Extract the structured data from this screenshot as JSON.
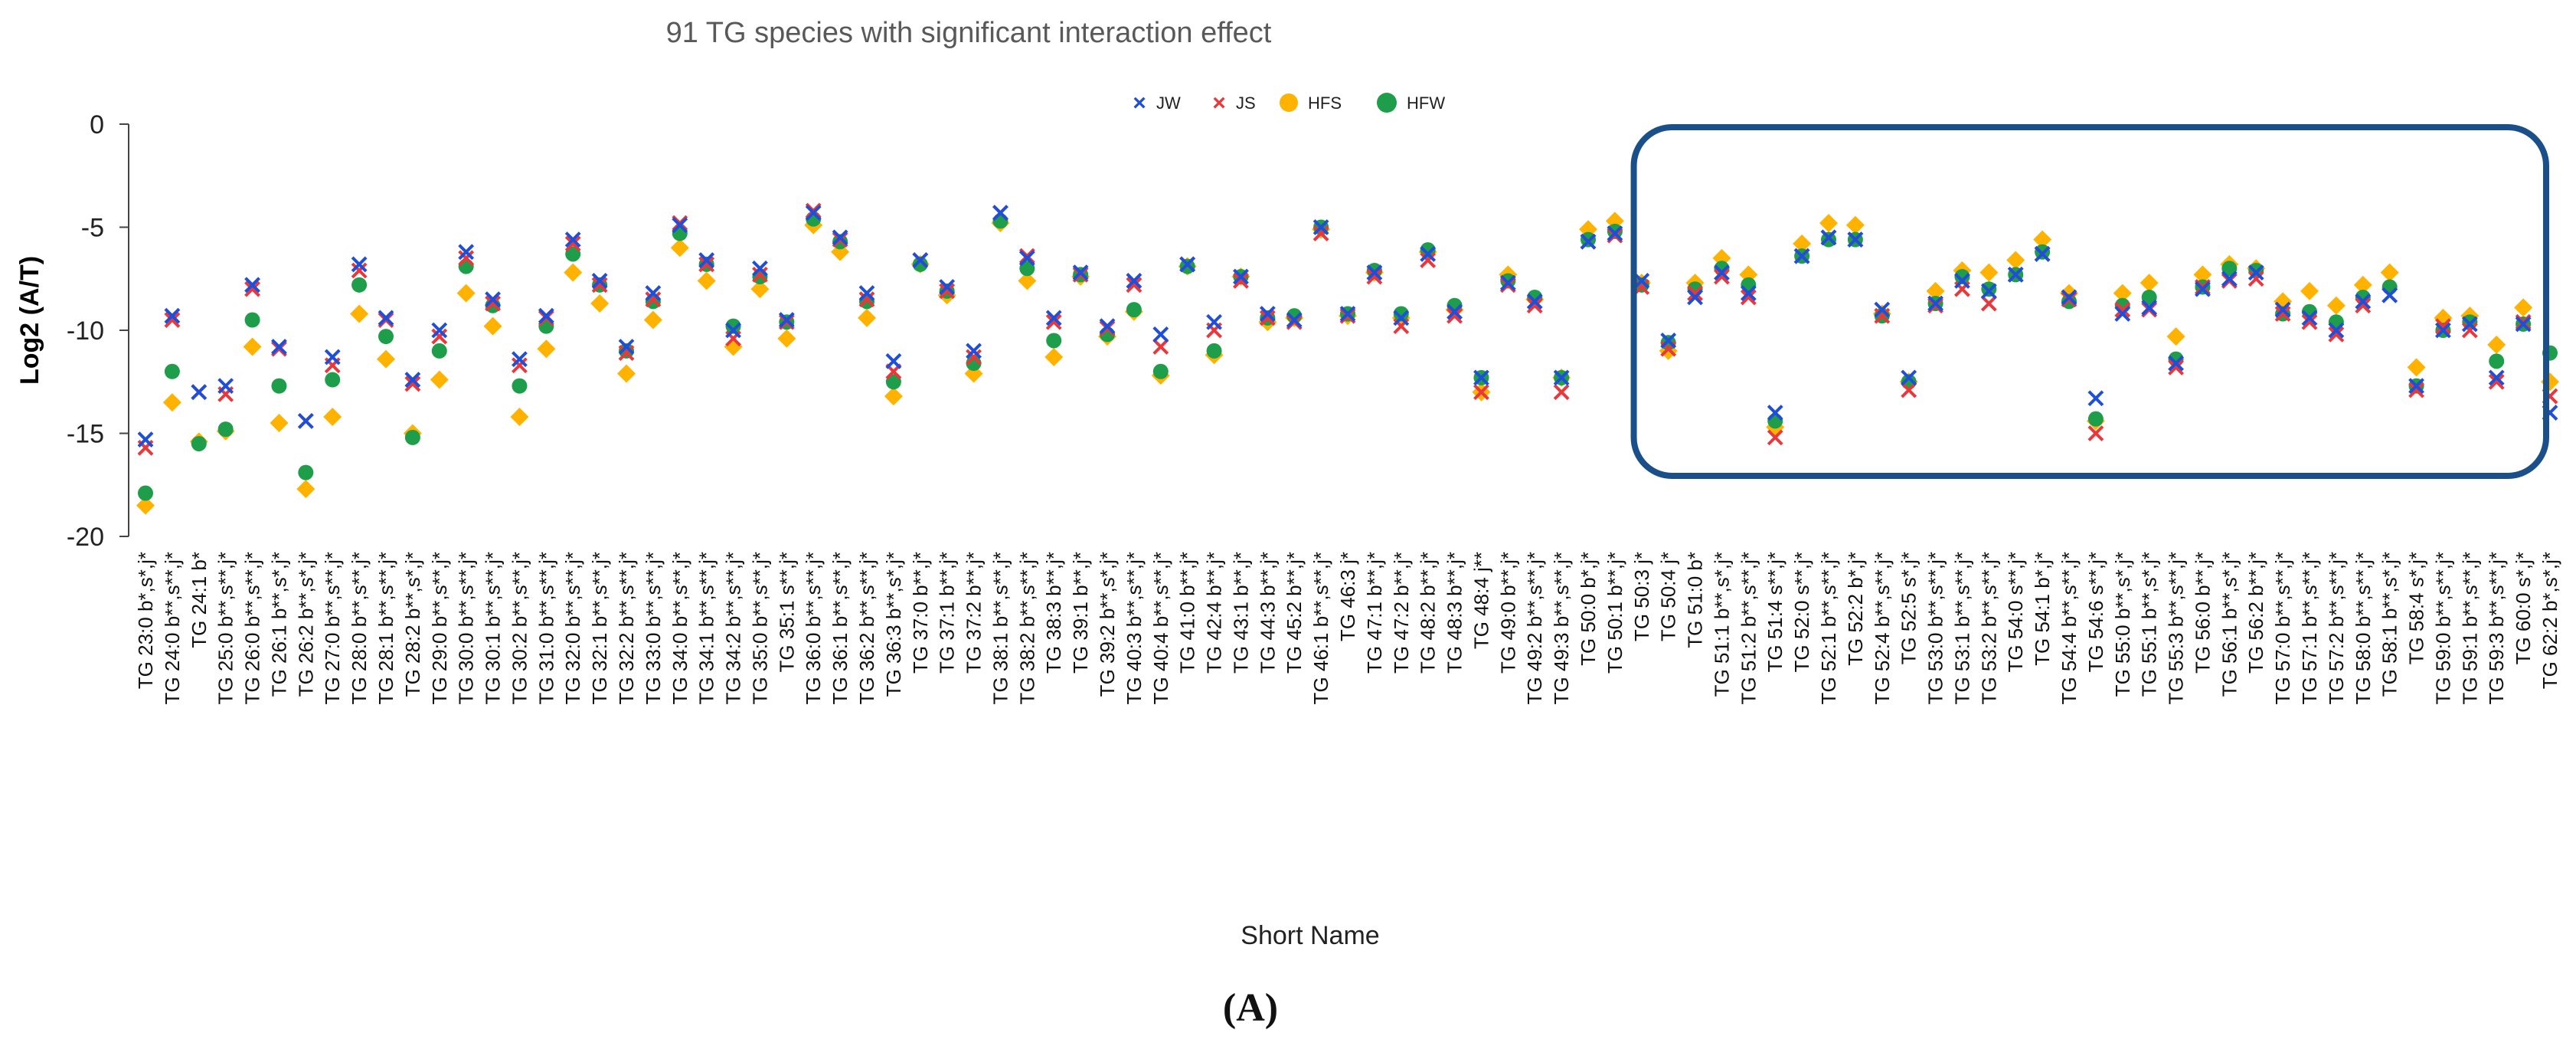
{
  "chart_data": {
    "type": "scatter",
    "title": "91 TG species with significant interaction effect",
    "xlabel": "Short Name",
    "ylabel": "Log2 (A/T)",
    "ylim": [
      -20,
      0
    ],
    "yticks": [
      0,
      -5,
      -10,
      -15,
      -20
    ],
    "panel_label": "(A)",
    "legend_position": "top-center",
    "highlight_box": {
      "from_category": "TG 51:0 b*",
      "to_category": "TG 62:2 b*,s*,j*"
    },
    "series": [
      {
        "name": "JW",
        "marker": "x",
        "color": "#1f4fd8"
      },
      {
        "name": "JS",
        "marker": "x",
        "color": "#e8383c"
      },
      {
        "name": "HFS",
        "marker": "diamond",
        "color": "#ffb300"
      },
      {
        "name": "HFW",
        "marker": "circle",
        "color": "#1e9e4a"
      }
    ],
    "categories": [
      "TG 23:0 b*,s*,j*",
      "TG 24:0 b**,s**,j*",
      "TG 24:1 b*",
      "TG 25:0 b**,s**,j*",
      "TG 26:0 b**,s**,j*",
      "TG 26:1 b**,s*,j*",
      "TG 26:2 b**,s*,j*",
      "TG 27:0 b**,s**,j*",
      "TG 28:0 b**,s**,j*",
      "TG 28:1 b**,s**,j*",
      "TG 28:2 b**,s*,j*",
      "TG 29:0 b**,s**,j*",
      "TG 30:0 b**,s**,j*",
      "TG 30:1 b**,s**,j*",
      "TG 30:2 b**,s**,j*",
      "TG 31:0 b**,s**,j*",
      "TG 32:0 b**,s**,j*",
      "TG 32:1 b**,s**,j*",
      "TG 32:2 b**,s**,j*",
      "TG 33:0 b**,s**,j*",
      "TG 34:0 b**,s**,j*",
      "TG 34:1 b**,s**,j*",
      "TG 34:2 b**,s**,j*",
      "TG 35:0 b**,s**,j*",
      "TG 35:1 s**,j*",
      "TG 36:0 b**,s**,j*",
      "TG 36:1 b**,s**,j*",
      "TG 36:2 b**,s**,j*",
      "TG 36:3 b**,s*,j*",
      "TG 37:0 b**,j*",
      "TG 37:1 b**,j*",
      "TG 37:2 b**,j*",
      "TG 38:1 b**,s**,j*",
      "TG 38:2 b**,s**,j*",
      "TG 38:3 b**,j*",
      "TG 39:1 b**,j*",
      "TG 39:2 b**,s*,j*",
      "TG 40:3 b**,s**,j*",
      "TG 40:4 b**,s**,j*",
      "TG 41:0 b**,j*",
      "TG 42:4 b**,j*",
      "TG 43:1 b**,j*",
      "TG 44:3 b**,j*",
      "TG 45:2 b**,j*",
      "TG 46:1 b**,s**,j*",
      "TG 46:3 j*",
      "TG 47:1 b**,j*",
      "TG 47:2 b**,j*",
      "TG 48:2 b**,j*",
      "TG 48:3 b**,j*",
      "TG 48:4 j**",
      "TG 49:0 b**,j*",
      "TG 49:2 b**,s**,j*",
      "TG 49:3 b**,s**,j*",
      "TG 50:0 b*,j*",
      "TG 50:1 b**,j*",
      "TG 50:3 j*",
      "TG 50:4 j*",
      "TG 51:0 b*",
      "TG 51:1 b**,s*,j*",
      "TG 51:2 b**,s**,j*",
      "TG 51:4 s**,j*",
      "TG 52:0 s**,j*",
      "TG 52:1 b**,s**,j*",
      "TG 52:2 b*,j*",
      "TG 52:4 b**,s**,j*",
      "TG 52:5 s*,j*",
      "TG 53:0 b**,s**,j*",
      "TG 53:1 b**,s**,j*",
      "TG 53:2 b**,s**,j*",
      "TG 54:0 s**,j*",
      "TG 54:1 b*,j*",
      "TG 54:4 b**,s**,j*",
      "TG 54:6 s**,j*",
      "TG 55:0 b**,s*,j*",
      "TG 55:1 b**,s*,j*",
      "TG 55:3 b**,s**,j*",
      "TG 56:0 b**,j*",
      "TG 56:1 b**,s*,j*",
      "TG 56:2 b**,j*",
      "TG 57:0 b**,s**,j*",
      "TG 57:1 b**,s**,j*",
      "TG 57:2 b**,s**,j*",
      "TG 58:0 b**,s**,j*",
      "TG 58:1 b**,s*,j*",
      "TG 58:4 s*,j*",
      "TG 59:0 b**,s**,j*",
      "TG 59:1 b**,s**,j*",
      "TG 59:3 b**,s**,j*",
      "TG 60:0 s*,j*",
      "TG 62:2 b*,s*,j*"
    ],
    "values": {
      "JW": [
        -15.3,
        -9.3,
        -13.0,
        -12.7,
        -7.8,
        -10.8,
        -14.4,
        -11.3,
        -6.8,
        -9.4,
        -12.4,
        -10.0,
        -6.2,
        -8.5,
        -11.4,
        -9.3,
        -5.6,
        -7.6,
        -10.8,
        -8.2,
        -4.9,
        -6.6,
        -10.0,
        -7.0,
        -9.5,
        -4.3,
        -5.5,
        -8.2,
        -11.5,
        -6.6,
        -7.9,
        -11.0,
        -4.3,
        -6.5,
        -9.4,
        -7.2,
        -9.8,
        -7.6,
        -10.2,
        -6.8,
        -9.6,
        -7.4,
        -9.2,
        -9.5,
        -5.0,
        -9.2,
        -7.2,
        -9.4,
        -6.3,
        -9.1,
        -12.3,
        -7.7,
        -8.6,
        -12.3,
        -5.7,
        -5.3,
        -7.6,
        -10.5,
        -8.4,
        -7.2,
        -8.2,
        -14.0,
        -6.4,
        -5.5,
        -5.6,
        -9.0,
        -12.3,
        -8.7,
        -7.6,
        -8.1,
        -7.3,
        -6.3,
        -8.4,
        -13.3,
        -9.2,
        -8.9,
        -11.6,
        -8.0,
        -7.5,
        -7.2,
        -9.0,
        -9.4,
        -10.0,
        -8.6,
        -8.3,
        -12.7,
        -10.0,
        -9.7,
        -12.3,
        -9.7,
        -14.0
      ],
      "JS": [
        -15.7,
        -9.5,
        -13.0,
        -13.1,
        -8.0,
        -10.9,
        -14.4,
        -11.7,
        -7.1,
        -9.5,
        -12.6,
        -10.3,
        -6.5,
        -8.7,
        -11.7,
        -9.4,
        -5.8,
        -7.8,
        -11.1,
        -8.5,
        -4.8,
        -6.8,
        -10.4,
        -7.3,
        -9.6,
        -4.2,
        -5.6,
        -8.5,
        -12.0,
        -6.6,
        -8.1,
        -11.3,
        -4.3,
        -6.4,
        -9.6,
        -7.3,
        -9.9,
        -7.8,
        -10.8,
        -6.8,
        -10.0,
        -7.6,
        -9.4,
        -9.6,
        -5.3,
        -9.3,
        -7.4,
        -9.8,
        -6.6,
        -9.3,
        -13.0,
        -7.8,
        -8.8,
        -13.0,
        -5.7,
        -5.4,
        -7.9,
        -10.9,
        -8.2,
        -7.4,
        -8.4,
        -15.2,
        -6.4,
        -5.5,
        -5.6,
        -9.3,
        -12.9,
        -8.8,
        -8.0,
        -8.7,
        -7.3,
        -6.3,
        -8.5,
        -15.0,
        -9.0,
        -9.0,
        -11.8,
        -7.9,
        -7.6,
        -7.5,
        -9.2,
        -9.6,
        -10.2,
        -8.8,
        -8.3,
        -12.9,
        -9.8,
        -10.0,
        -12.5,
        -9.6,
        -13.2
      ],
      "HFS": [
        -18.5,
        -13.5,
        -15.4,
        -14.9,
        -10.8,
        -14.5,
        -17.7,
        -14.2,
        -9.2,
        -11.4,
        -15.0,
        -12.4,
        -8.2,
        -9.8,
        -14.2,
        -10.9,
        -7.2,
        -8.7,
        -12.1,
        -9.5,
        -6.0,
        -7.6,
        -10.8,
        -8.0,
        -10.4,
        -4.9,
        -6.2,
        -9.4,
        -13.2,
        -6.8,
        -8.3,
        -12.1,
        -4.8,
        -7.6,
        -11.3,
        -7.4,
        -10.3,
        -9.1,
        -12.2,
        -6.9,
        -11.2,
        -7.4,
        -9.6,
        -9.4,
        -5.1,
        -9.3,
        -7.2,
        -9.4,
        -6.2,
        -9.0,
        -13.0,
        -7.3,
        -8.5,
        -12.3,
        -5.1,
        -4.7,
        -7.7,
        -11.0,
        -7.7,
        -6.5,
        -7.3,
        -14.7,
        -5.8,
        -4.8,
        -4.9,
        -9.2,
        -12.5,
        -8.1,
        -7.1,
        -7.2,
        -6.6,
        -5.6,
        -8.2,
        -14.4,
        -8.2,
        -7.7,
        -10.3,
        -7.3,
        -6.8,
        -7.0,
        -8.6,
        -8.1,
        -8.8,
        -7.8,
        -7.2,
        -11.8,
        -9.4,
        -9.3,
        -10.7,
        -8.9,
        -12.5
      ],
      "HFW": [
        -17.9,
        -12.0,
        -15.5,
        -14.8,
        -9.5,
        -12.7,
        -16.9,
        -12.4,
        -7.8,
        -10.3,
        -15.2,
        -11.0,
        -6.9,
        -8.8,
        -12.7,
        -9.8,
        -6.3,
        -7.8,
        -11.0,
        -8.6,
        -5.3,
        -6.8,
        -9.8,
        -7.4,
        -9.6,
        -4.6,
        -5.7,
        -8.6,
        -12.5,
        -6.8,
        -8.1,
        -11.6,
        -4.7,
        -7.0,
        -10.5,
        -7.3,
        -10.2,
        -9.0,
        -12.0,
        -6.9,
        -11.0,
        -7.4,
        -9.4,
        -9.3,
        -5.0,
        -9.2,
        -7.1,
        -9.2,
        -6.1,
        -8.8,
        -12.3,
        -7.6,
        -8.4,
        -12.3,
        -5.6,
        -5.2,
        -7.8,
        -10.6,
        -8.0,
        -7.0,
        -7.8,
        -14.4,
        -6.4,
        -5.6,
        -5.6,
        -9.3,
        -12.5,
        -8.7,
        -7.4,
        -8.0,
        -7.3,
        -6.2,
        -8.6,
        -14.3,
        -8.8,
        -8.4,
        -11.4,
        -7.9,
        -7.0,
        -7.1,
        -9.2,
        -9.1,
        -9.6,
        -8.4,
        -7.9,
        -12.7,
        -10.0,
        -9.6,
        -11.5,
        -9.7,
        -11.1
      ]
    }
  }
}
